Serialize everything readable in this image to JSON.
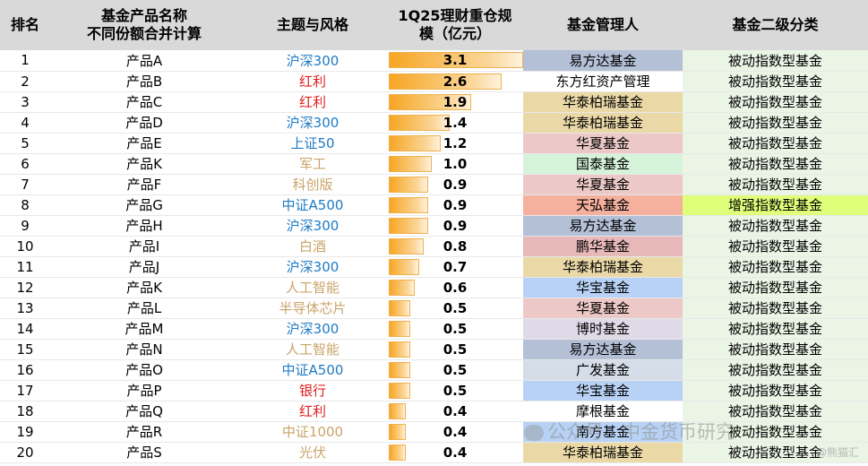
{
  "headers": {
    "rank": "排名",
    "name_line1": "基金产品名称",
    "name_line2": "不同份额合并计算",
    "theme": "主题与风格",
    "scale_line1": "1Q25理财重仓规",
    "scale_line2": "模（亿元）",
    "manager": "基金管理人",
    "category": "基金二级分类"
  },
  "rows": [
    {
      "rank": "1",
      "name": "产品A",
      "theme": "沪深300",
      "theme_color": "#1f7ac4",
      "scale": "3.1",
      "scale_value": 3.1,
      "manager": "易方达基金",
      "mgr_color": "#b4c0d6",
      "category": "被动指数型基金",
      "cat_hl": false
    },
    {
      "rank": "2",
      "name": "产品B",
      "theme": "红利",
      "theme_color": "#e02020",
      "scale": "2.6",
      "scale_value": 2.6,
      "manager": "东方红资产管理",
      "mgr_color": "#ffffff",
      "category": "被动指数型基金",
      "cat_hl": false
    },
    {
      "rank": "3",
      "name": "产品C",
      "theme": "红利",
      "theme_color": "#e02020",
      "scale": "1.9",
      "scale_value": 1.9,
      "manager": "华泰柏瑞基金",
      "mgr_color": "#ead9a7",
      "category": "被动指数型基金",
      "cat_hl": false
    },
    {
      "rank": "4",
      "name": "产品D",
      "theme": "沪深300",
      "theme_color": "#1f7ac4",
      "scale": "1.4",
      "scale_value": 1.4,
      "manager": "华泰柏瑞基金",
      "mgr_color": "#ead9a7",
      "category": "被动指数型基金",
      "cat_hl": false
    },
    {
      "rank": "5",
      "name": "产品E",
      "theme": "上证50",
      "theme_color": "#1f7ac4",
      "scale": "1.2",
      "scale_value": 1.2,
      "manager": "华夏基金",
      "mgr_color": "#ecc9c7",
      "category": "被动指数型基金",
      "cat_hl": false
    },
    {
      "rank": "6",
      "name": "产品K",
      "theme": "军工",
      "theme_color": "#c9a46a",
      "scale": "1.0",
      "scale_value": 1.0,
      "manager": "国泰基金",
      "mgr_color": "#d5f3d9",
      "category": "被动指数型基金",
      "cat_hl": false
    },
    {
      "rank": "7",
      "name": "产品F",
      "theme": "科创版",
      "theme_color": "#c9a46a",
      "scale": "0.9",
      "scale_value": 0.9,
      "manager": "华夏基金",
      "mgr_color": "#ecc9c7",
      "category": "被动指数型基金",
      "cat_hl": false
    },
    {
      "rank": "8",
      "name": "产品G",
      "theme": "中证A500",
      "theme_color": "#1f7ac4",
      "scale": "0.9",
      "scale_value": 0.9,
      "manager": "天弘基金",
      "mgr_color": "#f5b09e",
      "category": "增强指数型基金",
      "cat_hl": true
    },
    {
      "rank": "9",
      "name": "产品H",
      "theme": "沪深300",
      "theme_color": "#1f7ac4",
      "scale": "0.9",
      "scale_value": 0.9,
      "manager": "易方达基金",
      "mgr_color": "#b4c0d6",
      "category": "被动指数型基金",
      "cat_hl": false
    },
    {
      "rank": "10",
      "name": "产品I",
      "theme": "白酒",
      "theme_color": "#c9a46a",
      "scale": "0.8",
      "scale_value": 0.8,
      "manager": "鹏华基金",
      "mgr_color": "#e6b8b8",
      "category": "被动指数型基金",
      "cat_hl": false
    },
    {
      "rank": "11",
      "name": "产品J",
      "theme": "沪深300",
      "theme_color": "#1f7ac4",
      "scale": "0.7",
      "scale_value": 0.7,
      "manager": "华泰柏瑞基金",
      "mgr_color": "#ead9a7",
      "category": "被动指数型基金",
      "cat_hl": false
    },
    {
      "rank": "12",
      "name": "产品K",
      "theme": "人工智能",
      "theme_color": "#c9a46a",
      "scale": "0.6",
      "scale_value": 0.6,
      "manager": "华宝基金",
      "mgr_color": "#b8d2f5",
      "category": "被动指数型基金",
      "cat_hl": false
    },
    {
      "rank": "13",
      "name": "产品L",
      "theme": "半导体芯片",
      "theme_color": "#c9a46a",
      "scale": "0.5",
      "scale_value": 0.5,
      "manager": "华夏基金",
      "mgr_color": "#ecc9c7",
      "category": "被动指数型基金",
      "cat_hl": false
    },
    {
      "rank": "14",
      "name": "产品M",
      "theme": "沪深300",
      "theme_color": "#1f7ac4",
      "scale": "0.5",
      "scale_value": 0.5,
      "manager": "博时基金",
      "mgr_color": "#dfdae8",
      "category": "被动指数型基金",
      "cat_hl": false
    },
    {
      "rank": "15",
      "name": "产品N",
      "theme": "人工智能",
      "theme_color": "#c9a46a",
      "scale": "0.5",
      "scale_value": 0.5,
      "manager": "易方达基金",
      "mgr_color": "#b4c0d6",
      "category": "被动指数型基金",
      "cat_hl": false
    },
    {
      "rank": "16",
      "name": "产品O",
      "theme": "中证A500",
      "theme_color": "#1f7ac4",
      "scale": "0.5",
      "scale_value": 0.5,
      "manager": "广发基金",
      "mgr_color": "#d5dde8",
      "category": "被动指数型基金",
      "cat_hl": false
    },
    {
      "rank": "17",
      "name": "产品P",
      "theme": "银行",
      "theme_color": "#e02020",
      "scale": "0.5",
      "scale_value": 0.5,
      "manager": "华宝基金",
      "mgr_color": "#b8d2f5",
      "category": "被动指数型基金",
      "cat_hl": false
    },
    {
      "rank": "18",
      "name": "产品Q",
      "theme": "红利",
      "theme_color": "#e02020",
      "scale": "0.4",
      "scale_value": 0.4,
      "manager": "摩根基金",
      "mgr_color": "#ffffff",
      "category": "被动指数型基金",
      "cat_hl": false
    },
    {
      "rank": "19",
      "name": "产品R",
      "theme": "中证1000",
      "theme_color": "#c9a46a",
      "scale": "0.4",
      "scale_value": 0.4,
      "manager": "南方基金",
      "mgr_color": "#b8d2f5",
      "category": "被动指数型基金",
      "cat_hl": false
    },
    {
      "rank": "20",
      "name": "产品S",
      "theme": "光伏",
      "theme_color": "#c9a46a",
      "scale": "0.4",
      "scale_value": 0.4,
      "manager": "华泰柏瑞基金",
      "mgr_color": "#ead9a7",
      "category": "被动指数型基金",
      "cat_hl": false
    }
  ],
  "scale_max": 3.1,
  "watermark": {
    "text": "公众号 · 中金货币研究",
    "corner": "@熊猫汇"
  }
}
